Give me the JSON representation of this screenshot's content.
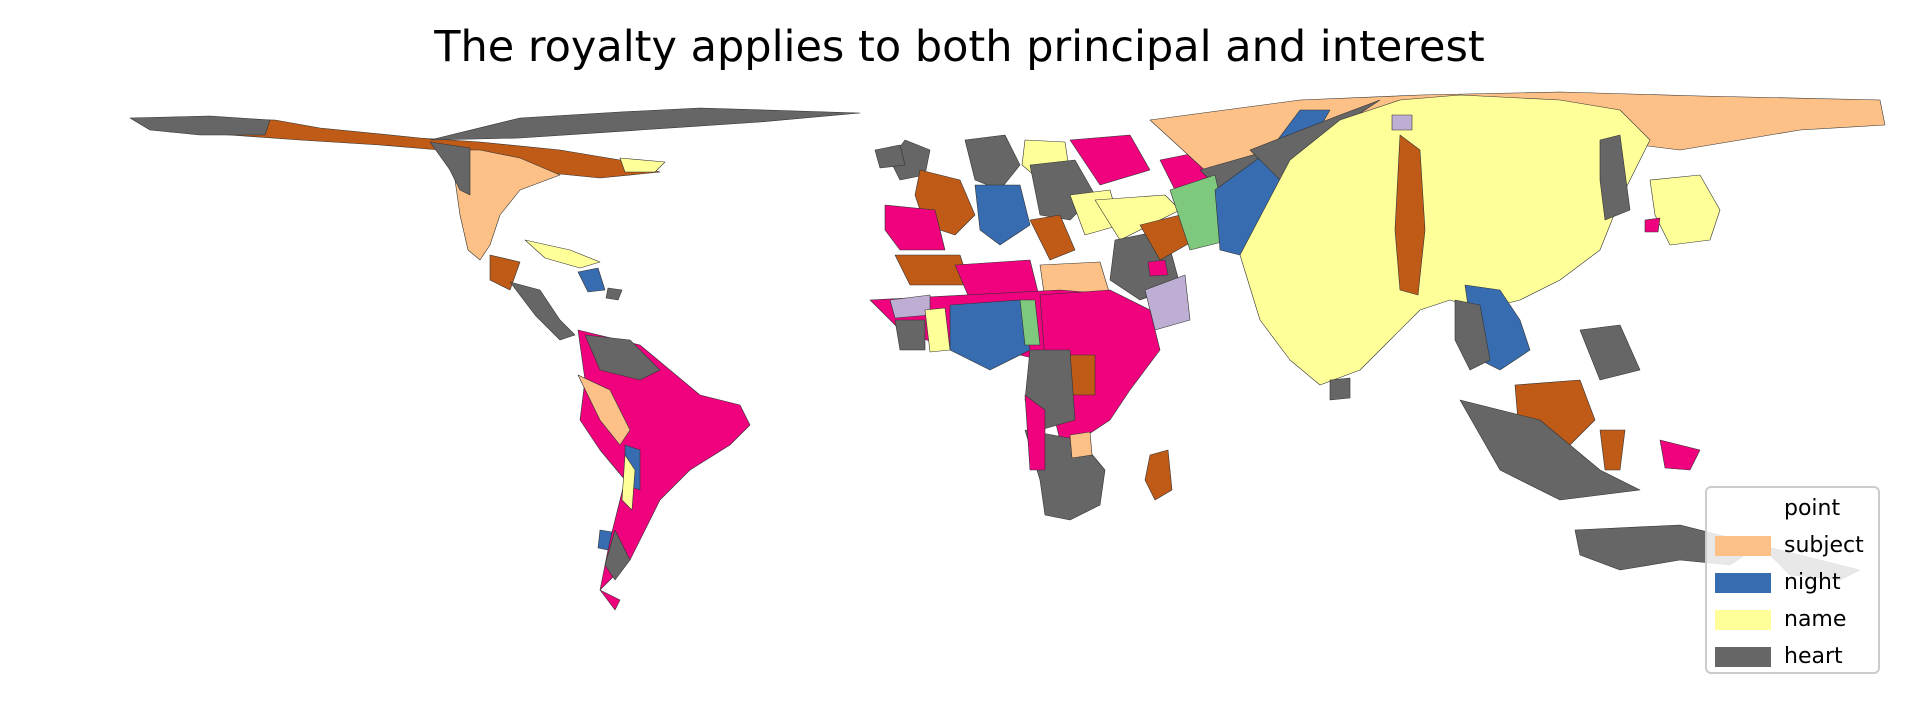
{
  "title": "The royalty applies to both principal and interest",
  "legend": {
    "placement": "lower-right",
    "items": [
      {
        "label": "point",
        "color": "#ffffff"
      },
      {
        "label": "subject",
        "color": "#fdc086"
      },
      {
        "label": "night",
        "color": "#386cb0"
      },
      {
        "label": "name",
        "color": "#ffff99"
      },
      {
        "label": "heart",
        "color": "#666666"
      }
    ]
  },
  "other_colors": {
    "brown": "#bf5b17",
    "magenta": "#f0027f",
    "green": "#7fc97f",
    "lavender": "#beaed4"
  }
}
